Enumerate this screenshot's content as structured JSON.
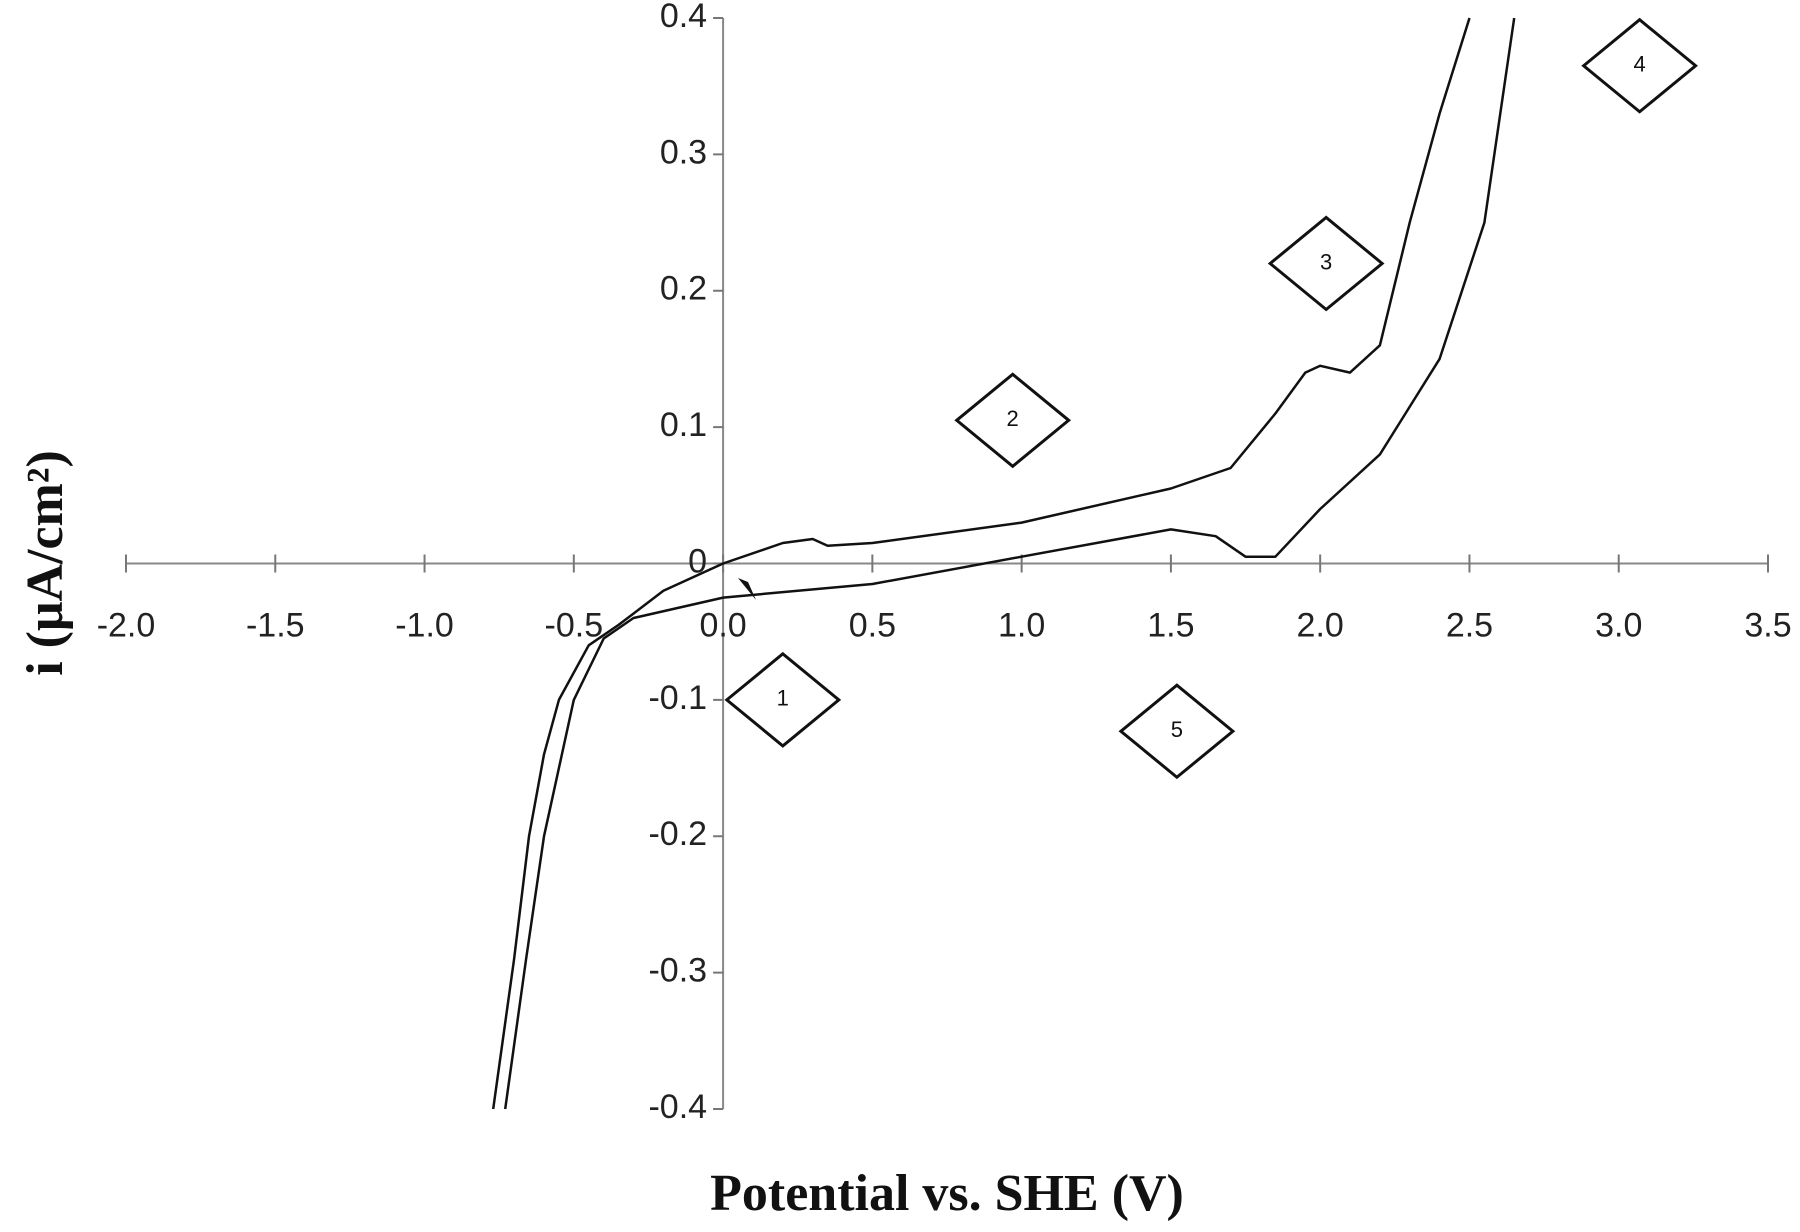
{
  "chart_data": {
    "type": "line",
    "x_label": "Potential vs. SHE (V)",
    "y_label": "i (μA/cm²)",
    "xlim": [
      -2.0,
      3.5
    ],
    "ylim": [
      -0.4,
      0.4
    ],
    "xticks": [
      {
        "value": -2,
        "label": "-2.0"
      },
      -1.5,
      {
        "value": -1,
        "label": "-1.0"
      },
      -0.5,
      {
        "value": 0,
        "label": "0.0"
      },
      0.5,
      {
        "value": 1,
        "label": "1.0"
      },
      1.5,
      {
        "value": 2,
        "label": "2.0"
      },
      2.5,
      {
        "value": 3,
        "label": "3.0"
      },
      3.5
    ],
    "yticks": [
      -0.4,
      -0.3,
      -0.2,
      -0.1,
      0,
      0.1,
      0.2,
      0.3,
      0.4
    ],
    "series": [
      {
        "color": "#111111",
        "x": [
          -0.77,
          -0.7,
          -0.65,
          -0.6,
          -0.55,
          -0.45,
          -0.35,
          -0.2,
          0,
          0.2,
          0.3,
          0.35,
          0.5,
          1.0,
          1.5,
          1.7,
          1.85,
          1.95,
          2.0,
          2.1,
          2.2,
          2.3,
          2.4,
          2.5
        ],
        "values": [
          -0.4,
          -0.29,
          -0.2,
          -0.14,
          -0.1,
          -0.06,
          -0.045,
          -0.02,
          0,
          0.015,
          0.018,
          0.013,
          0.015,
          0.03,
          0.055,
          0.07,
          0.11,
          0.14,
          0.145,
          0.14,
          0.16,
          0.25,
          0.33,
          0.4
        ]
      },
      {
        "color": "#111111",
        "x": [
          -0.73,
          -0.66,
          -0.6,
          -0.5,
          -0.4,
          -0.3,
          0,
          0.5,
          1.0,
          1.5,
          1.65,
          1.75,
          1.85,
          2.0,
          2.2,
          2.4,
          2.55,
          2.65
        ],
        "values": [
          -0.4,
          -0.29,
          -0.2,
          -0.1,
          -0.055,
          -0.04,
          -0.025,
          -0.015,
          0.005,
          0.025,
          0.02,
          0.005,
          0.005,
          0.04,
          0.08,
          0.15,
          0.25,
          0.4
        ]
      }
    ],
    "annotations": [
      {
        "text": "1",
        "x": 0.2,
        "y": -0.1
      },
      {
        "text": "2",
        "x": 0.97,
        "y": 0.105
      },
      {
        "text": "3",
        "x": 2.02,
        "y": 0.22
      },
      {
        "text": "4",
        "x": 3.07,
        "y": 0.365
      },
      {
        "text": "5",
        "x": 1.52,
        "y": -0.123
      }
    ]
  }
}
